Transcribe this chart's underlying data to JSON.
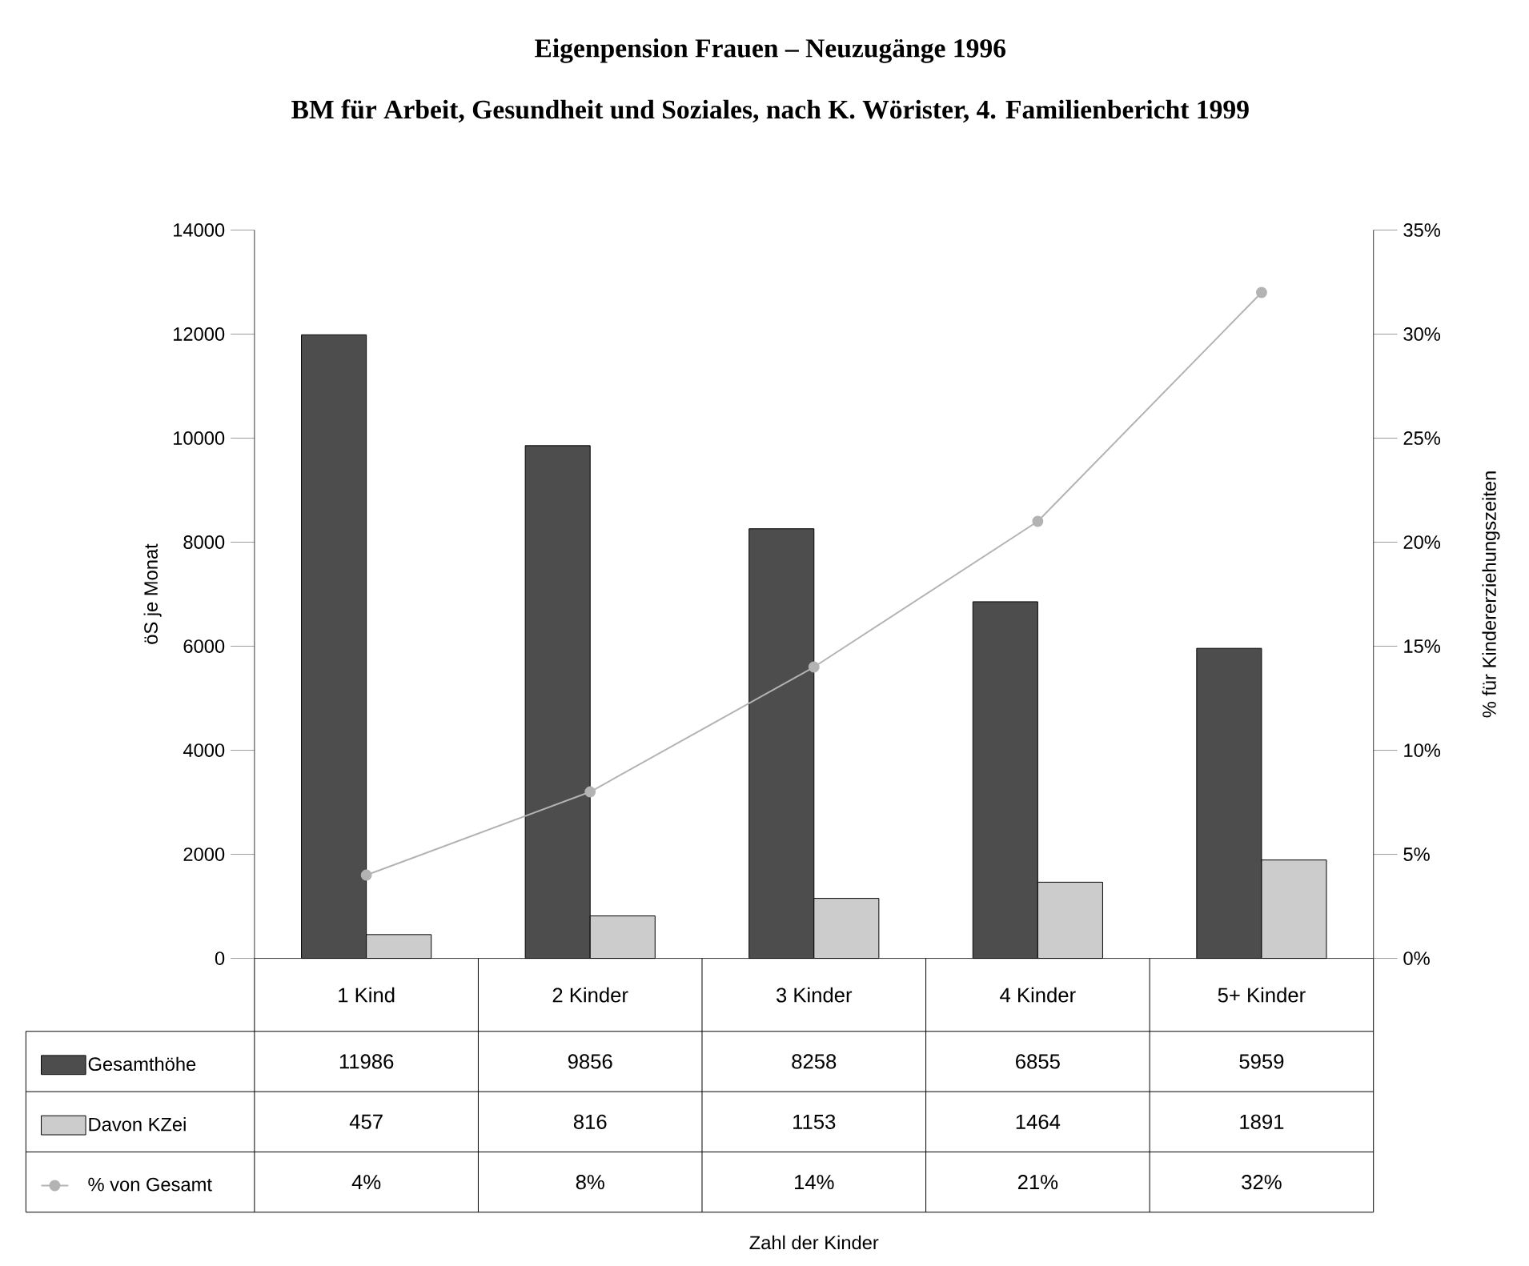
{
  "chart_data": {
    "type": "bar",
    "title": "Eigenpension Frauen – Neuzugänge 1996",
    "subtitle": "BM für Arbeit, Gesundheit und Soziales, nach K. Wörister, 4. Familienbericht 1999",
    "annotations": [
      "Zahl der Kinder"
    ],
    "ylabel": "öS je Monat",
    "y2label": "% für Kindererziehungszeiten",
    "categories": [
      "1 Kind",
      "2 Kinder",
      "3 Kinder",
      "4 Kinder",
      "5+ Kinder"
    ],
    "series": [
      {
        "name": "Gesamthöhe",
        "color": "#4d4d4d",
        "values": [
          11986,
          9856,
          8258,
          6855,
          5959
        ]
      },
      {
        "name": "Davon KZei",
        "color": "#cccccc",
        "values": [
          457,
          816,
          1153,
          1464,
          1891
        ]
      },
      {
        "name": "% von Gesamt",
        "type": "line",
        "axis": "y2",
        "color": "#b3b3b3",
        "marker": "circle",
        "values": [
          4,
          8,
          14,
          21,
          32
        ],
        "value_labels": [
          "4%",
          "8%",
          "14%",
          "21%",
          "32%"
        ]
      }
    ],
    "ylim": [
      0,
      14000
    ],
    "yticks": [
      0,
      2000,
      4000,
      6000,
      8000,
      10000,
      12000,
      14000
    ],
    "y2lim": [
      0,
      35
    ],
    "y2ticks": [
      {
        "value": 0,
        "label": "0%"
      },
      {
        "value": 5,
        "label": "5%"
      },
      {
        "value": 10,
        "label": "10%"
      },
      {
        "value": 15,
        "label": "15%"
      },
      {
        "value": 20,
        "label": "20%"
      },
      {
        "value": 25,
        "label": "25%"
      },
      {
        "value": 30,
        "label": "30%"
      },
      {
        "value": 35,
        "label": "35%"
      }
    ],
    "data_labels": true,
    "legend": "bottom left"
  }
}
